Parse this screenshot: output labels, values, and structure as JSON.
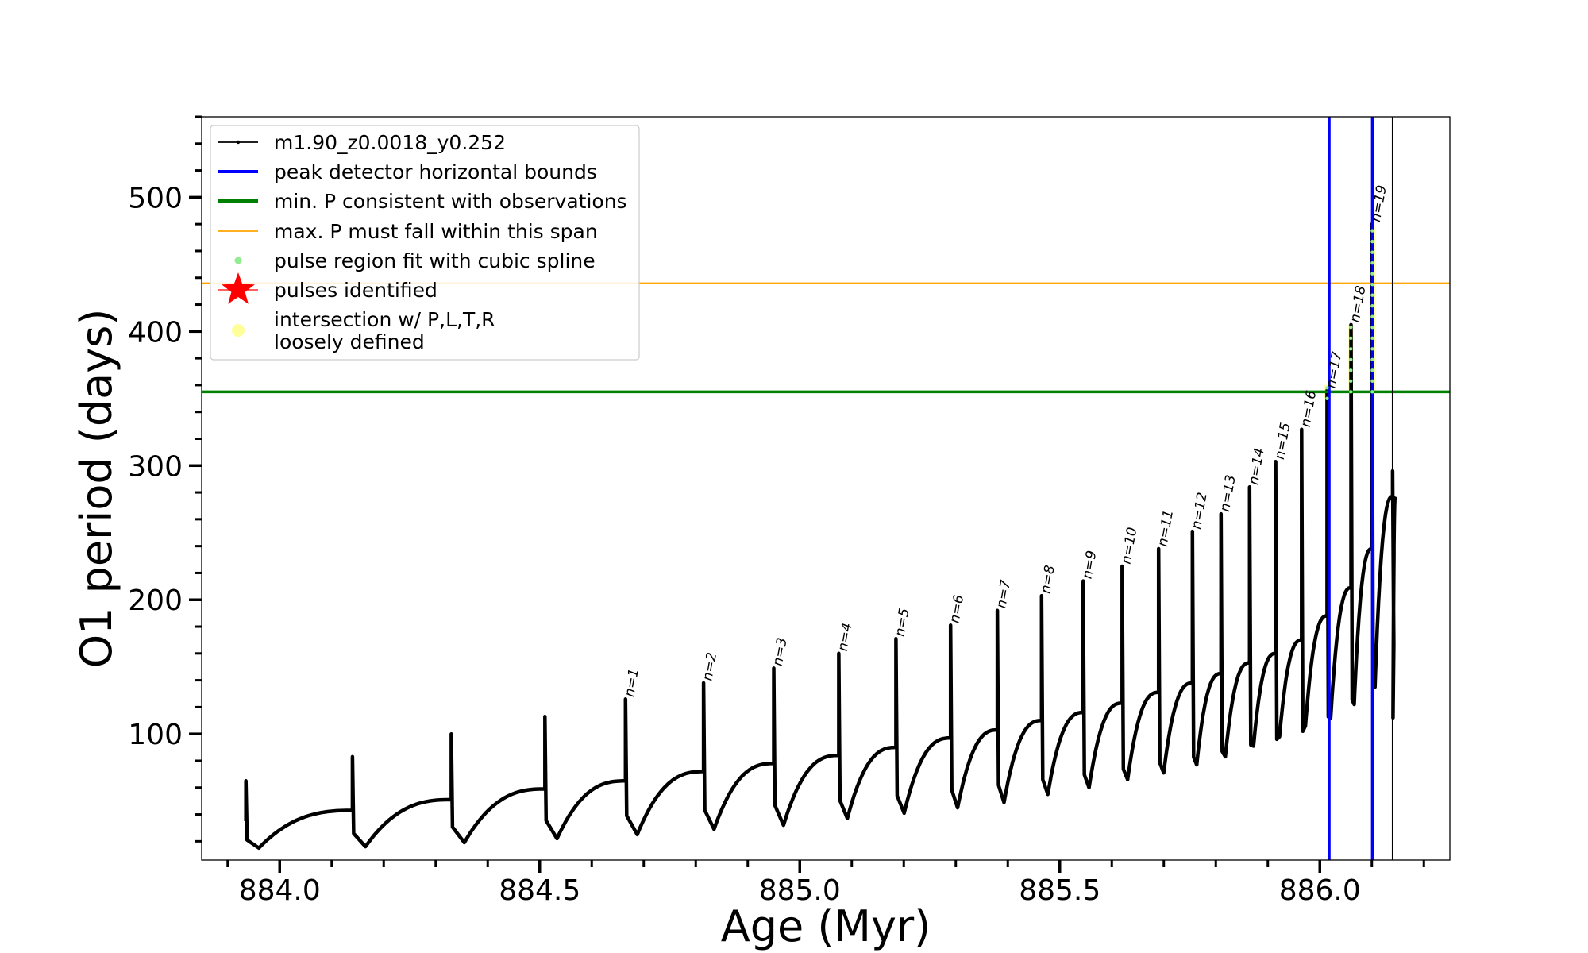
{
  "chart_data": {
    "type": "line",
    "xlabel": "Age (Myr)",
    "ylabel": "O1 period (days)",
    "xlim": [
      883.85,
      886.25
    ],
    "ylim": [
      6,
      560
    ],
    "xticks": [
      884.0,
      884.5,
      885.0,
      885.5,
      886.0
    ],
    "xtick_labels": [
      "884.0",
      "884.5",
      "885.0",
      "885.5",
      "886.0"
    ],
    "yticks": [
      100,
      200,
      300,
      400,
      500
    ],
    "ytick_labels": [
      "100",
      "200",
      "300",
      "400",
      "500"
    ],
    "x_minor_step": 0.1,
    "y_minor_step": 20,
    "grid": false,
    "legend_position": "top-left",
    "colors": {
      "series": "#000000",
      "peak_bounds": "#0000ff",
      "min_period": "#008000",
      "max_period": "#ffa500",
      "spline": "#90ee90",
      "pulses": "#ff0000",
      "intersection": "#ffff99"
    },
    "legend": [
      {
        "label": "m1.90_z0.0018_y0.252",
        "marker": "line-dot",
        "color": "#000000"
      },
      {
        "label": "peak detector horizontal bounds",
        "marker": "line-thick",
        "color": "#0000ff"
      },
      {
        "label": "min. P consistent with observations",
        "marker": "line-thick",
        "color": "#008000"
      },
      {
        "label": "max. P must fall within this span",
        "marker": "line-thin",
        "color": "#ffa500"
      },
      {
        "label": "pulse region fit with cubic spline",
        "marker": "dot",
        "color": "#90ee90"
      },
      {
        "label": "pulses identified",
        "marker": "star",
        "color": "#ff0000"
      },
      {
        "label": "intersection w/ P,L,T,R",
        "label2": "loosely defined",
        "marker": "big-dot",
        "color": "#ffff99"
      }
    ],
    "horizontal_lines": [
      {
        "name": "min. P consistent with observations",
        "y": 355,
        "color": "#008000"
      },
      {
        "name": "max. P must fall within this span",
        "y": 436,
        "color": "#ffa500"
      }
    ],
    "vertical_lines": [
      {
        "name": "peak detector horizontal bounds",
        "x": 886.018,
        "color": "#0000ff"
      },
      {
        "name": "peak detector horizontal bounds",
        "x": 886.101,
        "color": "#0000ff"
      },
      {
        "name": "m1.90_z0.0018_y0.252",
        "x": 886.14,
        "color": "#000000"
      }
    ],
    "series": [
      {
        "name": "m1.90_z0.0018_y0.252",
        "pulses": [
          {
            "t": 883.935,
            "base": 35,
            "peak": 65,
            "dip": 15,
            "next": 884.14
          },
          {
            "t": 884.14,
            "base": 43,
            "peak": 83,
            "dip": 16,
            "next": 884.33
          },
          {
            "t": 884.33,
            "base": 51,
            "peak": 100,
            "dip": 19,
            "next": 884.51
          },
          {
            "t": 884.51,
            "base": 59,
            "peak": 113,
            "dip": 22,
            "next": 884.665
          },
          {
            "t": 884.665,
            "base": 65,
            "peak": 126,
            "dip": 25,
            "next": 884.815
          },
          {
            "t": 884.815,
            "base": 72,
            "peak": 138,
            "dip": 29,
            "next": 884.95
          },
          {
            "t": 884.95,
            "base": 78,
            "peak": 149,
            "dip": 32,
            "next": 885.075
          },
          {
            "t": 885.075,
            "base": 84,
            "peak": 160,
            "dip": 37,
            "next": 885.185
          },
          {
            "t": 885.185,
            "base": 90,
            "peak": 171,
            "dip": 41,
            "next": 885.29
          },
          {
            "t": 885.29,
            "base": 97,
            "peak": 181,
            "dip": 45,
            "next": 885.38
          },
          {
            "t": 885.38,
            "base": 103,
            "peak": 192,
            "dip": 49,
            "next": 885.465
          },
          {
            "t": 885.465,
            "base": 110,
            "peak": 203,
            "dip": 55,
            "next": 885.545
          },
          {
            "t": 885.545,
            "base": 116,
            "peak": 214,
            "dip": 60,
            "next": 885.62
          },
          {
            "t": 885.62,
            "base": 123,
            "peak": 225,
            "dip": 66,
            "next": 885.69
          },
          {
            "t": 885.69,
            "base": 131,
            "peak": 238,
            "dip": 71,
            "next": 885.755
          },
          {
            "t": 885.755,
            "base": 138,
            "peak": 251,
            "dip": 77,
            "next": 885.81
          },
          {
            "t": 885.81,
            "base": 145,
            "peak": 264,
            "dip": 83,
            "next": 885.865
          },
          {
            "t": 885.865,
            "base": 153,
            "peak": 284,
            "dip": 91,
            "next": 885.915
          },
          {
            "t": 885.915,
            "base": 160,
            "peak": 303,
            "dip": 98,
            "next": 885.965
          },
          {
            "t": 885.965,
            "base": 170,
            "peak": 327,
            "dip": 106,
            "next": 886.014
          },
          {
            "t": 886.014,
            "base": 188,
            "peak": 356,
            "dip": 112,
            "next": 886.06
          },
          {
            "t": 886.06,
            "base": 209,
            "peak": 405,
            "dip": 122,
            "next": 886.1
          },
          {
            "t": 886.1,
            "base": 238,
            "peak": 480,
            "dip": 135,
            "next": 886.14
          },
          {
            "t": 886.14,
            "base": 277,
            "peak": 296,
            "dip": 112,
            "next": 886.145
          }
        ]
      }
    ],
    "annotations": [
      {
        "text": "n=1",
        "x": 884.665,
        "y": 126
      },
      {
        "text": "n=2",
        "x": 884.815,
        "y": 138
      },
      {
        "text": "n=3",
        "x": 884.95,
        "y": 149
      },
      {
        "text": "n=4",
        "x": 885.075,
        "y": 160
      },
      {
        "text": "n=5",
        "x": 885.185,
        "y": 171
      },
      {
        "text": "n=6",
        "x": 885.29,
        "y": 181
      },
      {
        "text": "n=7",
        "x": 885.38,
        "y": 192
      },
      {
        "text": "n=8",
        "x": 885.465,
        "y": 203
      },
      {
        "text": "n=9",
        "x": 885.545,
        "y": 214
      },
      {
        "text": "n=10",
        "x": 885.62,
        "y": 225
      },
      {
        "text": "n=11",
        "x": 885.69,
        "y": 238
      },
      {
        "text": "n=12",
        "x": 885.755,
        "y": 251
      },
      {
        "text": "n=13",
        "x": 885.81,
        "y": 264
      },
      {
        "text": "n=14",
        "x": 885.865,
        "y": 284
      },
      {
        "text": "n=15",
        "x": 885.915,
        "y": 303
      },
      {
        "text": "n=16",
        "x": 885.965,
        "y": 327
      },
      {
        "text": "n=17",
        "x": 886.014,
        "y": 356
      },
      {
        "text": "n=18",
        "x": 886.06,
        "y": 405
      },
      {
        "text": "n=19",
        "x": 886.1,
        "y": 480
      }
    ],
    "highlighted_pulses": [
      {
        "x_start": 886.008,
        "x_end": 886.02,
        "y_low": 350,
        "y_high": 360
      },
      {
        "x_start": 886.055,
        "x_end": 886.064,
        "y_low": 355,
        "y_high": 405
      },
      {
        "x_start": 886.098,
        "x_end": 886.104,
        "y_low": 355,
        "y_high": 478
      }
    ]
  }
}
